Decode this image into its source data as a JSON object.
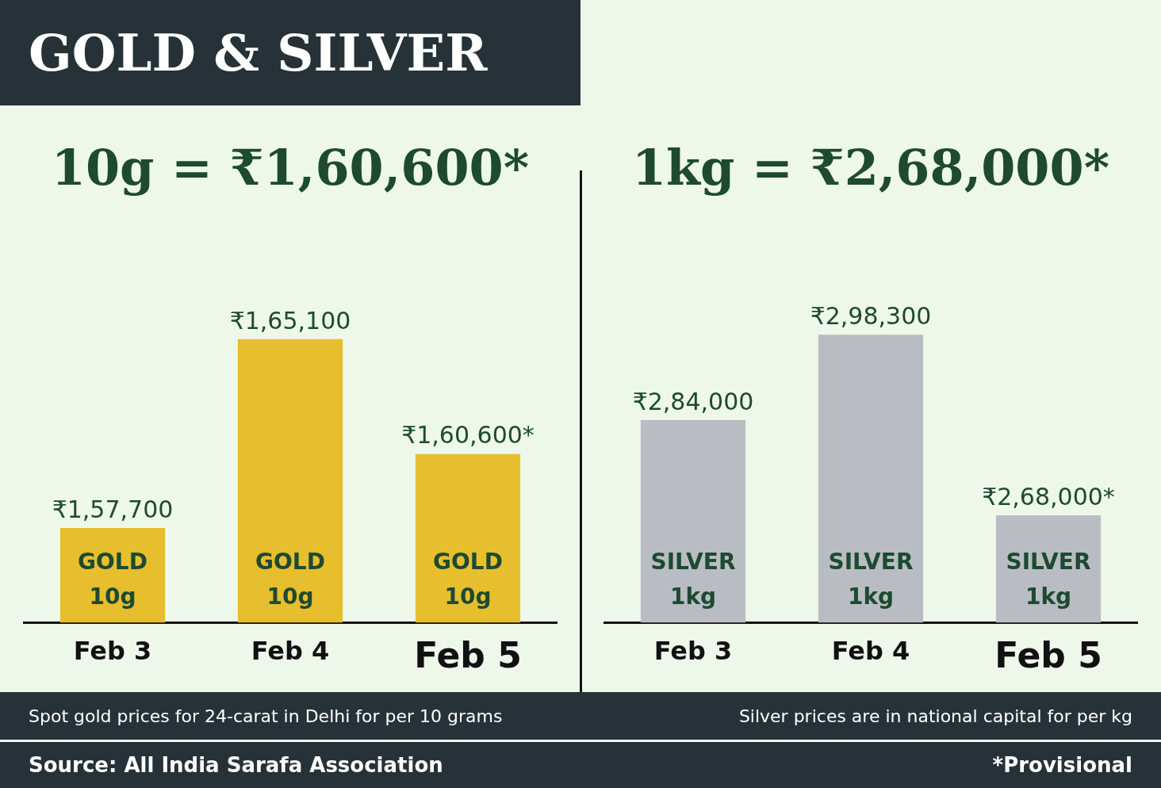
{
  "chart_data": [
    {
      "type": "bar",
      "title": "10g = ₹1,60,600*",
      "categories": [
        "Feb 3",
        "Feb 4",
        "Feb 5"
      ],
      "values": [
        157700,
        165100,
        160600
      ],
      "color": "#e6be2e",
      "value_labels": [
        "₹1,57,700",
        "₹1,65,100",
        "₹1,60,600*"
      ],
      "tick_labels": "x",
      "annotations": [
        "GOLD & SILVER",
        "GOLD 10g",
        "GOLD 10g",
        "GOLD 10g",
        "Spot gold prices for 24-carat in Delhi for per 10 grams",
        "Source: All India Sarafa Association"
      ]
    },
    {
      "type": "bar",
      "title": "1kg = ₹2,68,000*",
      "categories": [
        "Feb 3",
        "Feb 4",
        "Feb 5"
      ],
      "values": [
        284000,
        298300,
        268000
      ],
      "color": "#b9bdc3",
      "value_labels": [
        "₹2,84,000",
        "₹2,98,300",
        "₹2,68,000*"
      ],
      "tick_labels": "x",
      "annotations": [
        "SILVER 1kg",
        "SILVER 1kg",
        "SILVER 1kg",
        "Silver prices are in national capital for per kg",
        "*Provisional"
      ]
    }
  ]
}
